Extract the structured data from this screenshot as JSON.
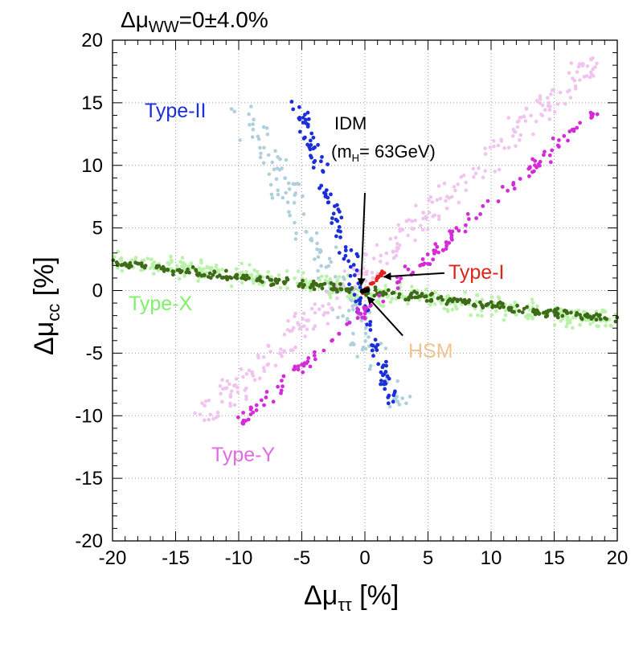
{
  "chart_data": {
    "type": "scatter",
    "title": {
      "prefix": "Δμ",
      "sub": "WW",
      "suffix": "=0±4.0%"
    },
    "xlabel": {
      "prefix": "Δμ",
      "sub": "ττ",
      "suffix": " [%]"
    },
    "ylabel": {
      "prefix": "Δμ",
      "sub": "cc",
      "suffix": " [%]"
    },
    "xlim": [
      -20,
      20
    ],
    "ylim": [
      -20,
      20
    ],
    "xticks": [
      -20,
      -15,
      -10,
      -5,
      0,
      5,
      10,
      15,
      20
    ],
    "yticks": [
      -20,
      -15,
      -10,
      -5,
      0,
      5,
      10,
      15,
      20
    ],
    "grid": true,
    "series": [
      {
        "name": "Type-II",
        "label": "Type-II",
        "color_light": "#aecfdc",
        "color_dark": "#1b2fd8",
        "label_color": "#1b2fd8",
        "light_band": {
          "from": [
            -10,
            15
          ],
          "to": [
            3,
            -9.5
          ],
          "n": 150,
          "spread": 1.3
        },
        "dark_band": {
          "from": [
            -5.3,
            15.3
          ],
          "to": [
            2.2,
            -9
          ],
          "n": 130,
          "spread": 0.7
        }
      },
      {
        "name": "Type-X",
        "label": "Type-X",
        "color_light": "#b9f2a8",
        "color_dark": "#3d6b17",
        "label_color": "#7ff06a",
        "light_band": {
          "from": [
            -20,
            2.5
          ],
          "to": [
            20,
            -2.5
          ],
          "n": 420,
          "spread": 0.9
        },
        "dark_band": {
          "from": [
            -20,
            2.2
          ],
          "to": [
            20,
            -2.3
          ],
          "n": 300,
          "spread": 0.4
        }
      },
      {
        "name": "Type-Y",
        "label": "Type-Y",
        "color_light": "#f0c4ee",
        "color_dark": "#d42bd8",
        "label_color": "#e26be0",
        "light_band": {
          "from": [
            -13,
            -10.5
          ],
          "to": [
            19,
            19
          ],
          "n": 280,
          "spread": 1.3
        },
        "dark_band": {
          "from": [
            -10,
            -10.5
          ],
          "to": [
            18.5,
            14.5
          ],
          "n": 160,
          "spread": 0.6
        }
      },
      {
        "name": "Type-I",
        "label": "Type-I",
        "color": "#e0241c",
        "label_color": "#e0241c",
        "band": {
          "from": [
            -0.4,
            -0.4
          ],
          "to": [
            1.5,
            1.5
          ],
          "n": 35,
          "spread": 0.12
        }
      },
      {
        "name": "HSM",
        "label": "HSM",
        "color": "#f5c890",
        "label_color": "#f2c38e",
        "points": [
          [
            0,
            0
          ]
        ]
      },
      {
        "name": "IDM",
        "label": "IDM",
        "color": "#000000",
        "points": [
          [
            -0.2,
            -0.05
          ],
          [
            0,
            0
          ],
          [
            0.2,
            0.05
          ]
        ]
      }
    ],
    "annotations": [
      {
        "text": "IDM",
        "data_at": [
          -2.3,
          13.2
        ],
        "color": "#000000"
      },
      {
        "text": "(m",
        "sub": "H",
        "after": "= 63GeV)",
        "data_at": [
          -2.6,
          10.8
        ],
        "color": "#000000"
      }
    ],
    "arrows": [
      {
        "points_to": "IDM",
        "from": [
          0,
          7.8
        ],
        "to": [
          -0.3,
          0.4
        ]
      },
      {
        "points_to": "Type-I",
        "from": [
          6.3,
          1.4
        ],
        "to": [
          1.5,
          1.1
        ]
      },
      {
        "points_to": "HSM",
        "from": [
          3,
          -3.6
        ],
        "to": [
          0.2,
          -0.5
        ]
      }
    ]
  }
}
